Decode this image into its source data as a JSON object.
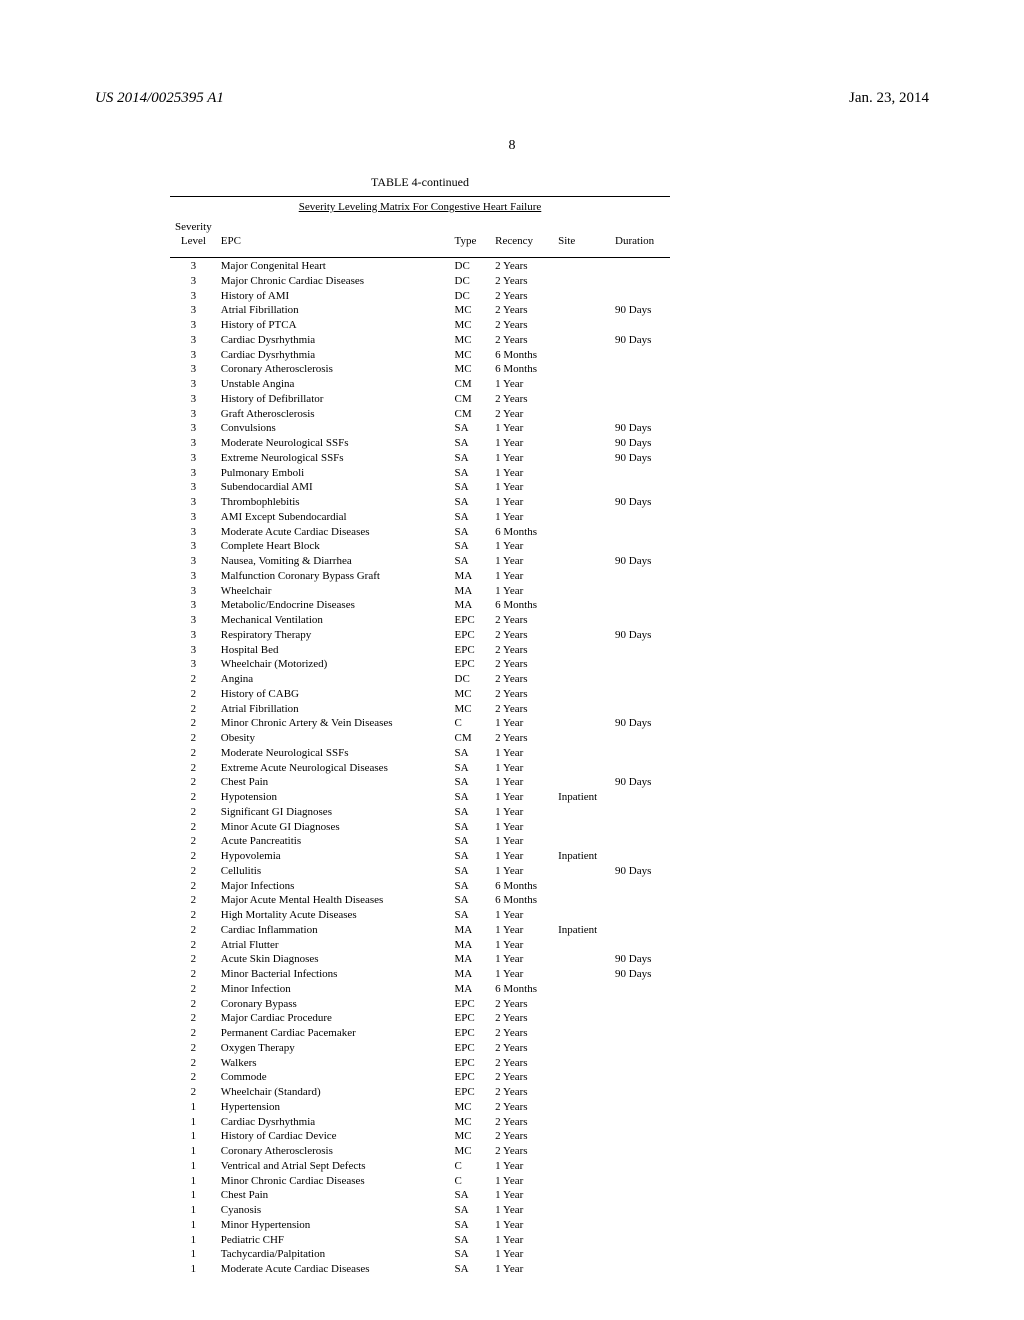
{
  "header": {
    "left": "US 2014/0025395 A1",
    "right": "Jan. 23, 2014",
    "page_number": "8"
  },
  "table": {
    "caption": "TABLE 4-continued",
    "subtitle": "Severity Leveling Matrix For Congestive Heart Failure",
    "columns": {
      "level_top": "Severity",
      "level_bottom": "Level",
      "epc": "EPC",
      "type": "Type",
      "recency": "Recency",
      "site": "Site",
      "duration": "Duration"
    },
    "rows": [
      {
        "level": "3",
        "epc": "Major Congenital Heart",
        "type": "DC",
        "recency": "2 Years",
        "site": "",
        "duration": ""
      },
      {
        "level": "3",
        "epc": "Major Chronic Cardiac Diseases",
        "type": "DC",
        "recency": "2 Years",
        "site": "",
        "duration": ""
      },
      {
        "level": "3",
        "epc": "History of AMI",
        "type": "DC",
        "recency": "2 Years",
        "site": "",
        "duration": ""
      },
      {
        "level": "3",
        "epc": "Atrial Fibrillation",
        "type": "MC",
        "recency": "2 Years",
        "site": "",
        "duration": "90 Days"
      },
      {
        "level": "3",
        "epc": "History of PTCA",
        "type": "MC",
        "recency": "2 Years",
        "site": "",
        "duration": ""
      },
      {
        "level": "3",
        "epc": "Cardiac Dysrhythmia",
        "type": "MC",
        "recency": "2 Years",
        "site": "",
        "duration": "90 Days"
      },
      {
        "level": "3",
        "epc": "Cardiac Dysrhythmia",
        "type": "MC",
        "recency": "6 Months",
        "site": "",
        "duration": ""
      },
      {
        "level": "3",
        "epc": "Coronary Atherosclerosis",
        "type": "MC",
        "recency": "6 Months",
        "site": "",
        "duration": ""
      },
      {
        "level": "3",
        "epc": "Unstable Angina",
        "type": "CM",
        "recency": "1 Year",
        "site": "",
        "duration": ""
      },
      {
        "level": "3",
        "epc": "History of Defibrillator",
        "type": "CM",
        "recency": "2 Years",
        "site": "",
        "duration": ""
      },
      {
        "level": "3",
        "epc": "Graft Atherosclerosis",
        "type": "CM",
        "recency": "2 Year",
        "site": "",
        "duration": ""
      },
      {
        "level": "3",
        "epc": "Convulsions",
        "type": "SA",
        "recency": "1 Year",
        "site": "",
        "duration": "90 Days"
      },
      {
        "level": "3",
        "epc": "Moderate Neurological SSFs",
        "type": "SA",
        "recency": "1 Year",
        "site": "",
        "duration": "90 Days"
      },
      {
        "level": "3",
        "epc": "Extreme Neurological SSFs",
        "type": "SA",
        "recency": "1 Year",
        "site": "",
        "duration": "90 Days"
      },
      {
        "level": "3",
        "epc": "Pulmonary Emboli",
        "type": "SA",
        "recency": "1 Year",
        "site": "",
        "duration": ""
      },
      {
        "level": "3",
        "epc": "Subendocardial AMI",
        "type": "SA",
        "recency": "1 Year",
        "site": "",
        "duration": ""
      },
      {
        "level": "3",
        "epc": "Thrombophlebitis",
        "type": "SA",
        "recency": "1 Year",
        "site": "",
        "duration": "90 Days"
      },
      {
        "level": "3",
        "epc": "AMI Except Subendocardial",
        "type": "SA",
        "recency": "1 Year",
        "site": "",
        "duration": ""
      },
      {
        "level": "3",
        "epc": "Moderate Acute Cardiac Diseases",
        "type": "SA",
        "recency": "6 Months",
        "site": "",
        "duration": ""
      },
      {
        "level": "3",
        "epc": "Complete Heart Block",
        "type": "SA",
        "recency": "1 Year",
        "site": "",
        "duration": ""
      },
      {
        "level": "3",
        "epc": "Nausea, Vomiting & Diarrhea",
        "type": "SA",
        "recency": "1 Year",
        "site": "",
        "duration": "90 Days"
      },
      {
        "level": "3",
        "epc": "Malfunction Coronary Bypass Graft",
        "type": "MA",
        "recency": "1 Year",
        "site": "",
        "duration": ""
      },
      {
        "level": "3",
        "epc": "Wheelchair",
        "type": "MA",
        "recency": "1 Year",
        "site": "",
        "duration": ""
      },
      {
        "level": "3",
        "epc": "Metabolic/Endocrine Diseases",
        "type": "MA",
        "recency": "6 Months",
        "site": "",
        "duration": ""
      },
      {
        "level": "3",
        "epc": "Mechanical Ventilation",
        "type": "EPC",
        "recency": "2 Years",
        "site": "",
        "duration": ""
      },
      {
        "level": "3",
        "epc": "Respiratory Therapy",
        "type": "EPC",
        "recency": "2 Years",
        "site": "",
        "duration": "90 Days"
      },
      {
        "level": "3",
        "epc": "Hospital Bed",
        "type": "EPC",
        "recency": "2 Years",
        "site": "",
        "duration": ""
      },
      {
        "level": "3",
        "epc": "Wheelchair (Motorized)",
        "type": "EPC",
        "recency": "2 Years",
        "site": "",
        "duration": ""
      },
      {
        "level": "2",
        "epc": "Angina",
        "type": "DC",
        "recency": "2 Years",
        "site": "",
        "duration": ""
      },
      {
        "level": "2",
        "epc": "History of CABG",
        "type": "MC",
        "recency": "2 Years",
        "site": "",
        "duration": ""
      },
      {
        "level": "2",
        "epc": "Atrial Fibrillation",
        "type": "MC",
        "recency": "2 Years",
        "site": "",
        "duration": ""
      },
      {
        "level": "2",
        "epc": "Minor Chronic Artery & Vein Diseases",
        "type": "C",
        "recency": "1 Year",
        "site": "",
        "duration": "90 Days"
      },
      {
        "level": "2",
        "epc": "Obesity",
        "type": "CM",
        "recency": "2 Years",
        "site": "",
        "duration": ""
      },
      {
        "level": "2",
        "epc": "Moderate Neurological SSFs",
        "type": "SA",
        "recency": "1 Year",
        "site": "",
        "duration": ""
      },
      {
        "level": "2",
        "epc": "Extreme Acute Neurological Diseases",
        "type": "SA",
        "recency": "1 Year",
        "site": "",
        "duration": ""
      },
      {
        "level": "2",
        "epc": "Chest Pain",
        "type": "SA",
        "recency": "1 Year",
        "site": "",
        "duration": "90 Days"
      },
      {
        "level": "2",
        "epc": "Hypotension",
        "type": "SA",
        "recency": "1 Year",
        "site": "Inpatient",
        "duration": ""
      },
      {
        "level": "2",
        "epc": "Significant GI Diagnoses",
        "type": "SA",
        "recency": "1 Year",
        "site": "",
        "duration": ""
      },
      {
        "level": "2",
        "epc": "Minor Acute GI Diagnoses",
        "type": "SA",
        "recency": "1 Year",
        "site": "",
        "duration": ""
      },
      {
        "level": "2",
        "epc": "Acute Pancreatitis",
        "type": "SA",
        "recency": "1 Year",
        "site": "",
        "duration": ""
      },
      {
        "level": "2",
        "epc": "Hypovolemia",
        "type": "SA",
        "recency": "1 Year",
        "site": "Inpatient",
        "duration": ""
      },
      {
        "level": "2",
        "epc": "Cellulitis",
        "type": "SA",
        "recency": "1 Year",
        "site": "",
        "duration": "90 Days"
      },
      {
        "level": "2",
        "epc": "Major Infections",
        "type": "SA",
        "recency": "6 Months",
        "site": "",
        "duration": ""
      },
      {
        "level": "2",
        "epc": "Major Acute Mental Health Diseases",
        "type": "SA",
        "recency": "6 Months",
        "site": "",
        "duration": ""
      },
      {
        "level": "2",
        "epc": "High Mortality Acute Diseases",
        "type": "SA",
        "recency": "1 Year",
        "site": "",
        "duration": ""
      },
      {
        "level": "2",
        "epc": "Cardiac Inflammation",
        "type": "MA",
        "recency": "1 Year",
        "site": "Inpatient",
        "duration": ""
      },
      {
        "level": "2",
        "epc": "Atrial Flutter",
        "type": "MA",
        "recency": "1 Year",
        "site": "",
        "duration": ""
      },
      {
        "level": "2",
        "epc": "Acute Skin Diagnoses",
        "type": "MA",
        "recency": "1 Year",
        "site": "",
        "duration": "90 Days"
      },
      {
        "level": "2",
        "epc": "Minor Bacterial Infections",
        "type": "MA",
        "recency": "1 Year",
        "site": "",
        "duration": "90 Days"
      },
      {
        "level": "2",
        "epc": "Minor Infection",
        "type": "MA",
        "recency": "6 Months",
        "site": "",
        "duration": ""
      },
      {
        "level": "2",
        "epc": "Coronary Bypass",
        "type": "EPC",
        "recency": "2 Years",
        "site": "",
        "duration": ""
      },
      {
        "level": "2",
        "epc": "Major Cardiac Procedure",
        "type": "EPC",
        "recency": "2 Years",
        "site": "",
        "duration": ""
      },
      {
        "level": "2",
        "epc": "Permanent Cardiac Pacemaker",
        "type": "EPC",
        "recency": "2 Years",
        "site": "",
        "duration": ""
      },
      {
        "level": "2",
        "epc": "Oxygen Therapy",
        "type": "EPC",
        "recency": "2 Years",
        "site": "",
        "duration": ""
      },
      {
        "level": "2",
        "epc": "Walkers",
        "type": "EPC",
        "recency": "2 Years",
        "site": "",
        "duration": ""
      },
      {
        "level": "2",
        "epc": "Commode",
        "type": "EPC",
        "recency": "2 Years",
        "site": "",
        "duration": ""
      },
      {
        "level": "2",
        "epc": "Wheelchair (Standard)",
        "type": "EPC",
        "recency": "2 Years",
        "site": "",
        "duration": ""
      },
      {
        "level": "1",
        "epc": "Hypertension",
        "type": "MC",
        "recency": "2 Years",
        "site": "",
        "duration": ""
      },
      {
        "level": "1",
        "epc": "Cardiac Dysrhythmia",
        "type": "MC",
        "recency": "2 Years",
        "site": "",
        "duration": ""
      },
      {
        "level": "1",
        "epc": "History of Cardiac Device",
        "type": "MC",
        "recency": "2 Years",
        "site": "",
        "duration": ""
      },
      {
        "level": "1",
        "epc": "Coronary Atherosclerosis",
        "type": "MC",
        "recency": "2 Years",
        "site": "",
        "duration": ""
      },
      {
        "level": "1",
        "epc": "Ventrical and Atrial Sept Defects",
        "type": "C",
        "recency": "1 Year",
        "site": "",
        "duration": ""
      },
      {
        "level": "1",
        "epc": "Minor Chronic Cardiac Diseases",
        "type": "C",
        "recency": "1 Year",
        "site": "",
        "duration": ""
      },
      {
        "level": "1",
        "epc": "Chest Pain",
        "type": "SA",
        "recency": "1 Year",
        "site": "",
        "duration": ""
      },
      {
        "level": "1",
        "epc": "Cyanosis",
        "type": "SA",
        "recency": "1 Year",
        "site": "",
        "duration": ""
      },
      {
        "level": "1",
        "epc": "Minor Hypertension",
        "type": "SA",
        "recency": "1 Year",
        "site": "",
        "duration": ""
      },
      {
        "level": "1",
        "epc": "Pediatric CHF",
        "type": "SA",
        "recency": "1 Year",
        "site": "",
        "duration": ""
      },
      {
        "level": "1",
        "epc": "Tachycardia/Palpitation",
        "type": "SA",
        "recency": "1 Year",
        "site": "",
        "duration": ""
      },
      {
        "level": "1",
        "epc": "Moderate Acute Cardiac Diseases",
        "type": "SA",
        "recency": "1 Year",
        "site": "",
        "duration": ""
      }
    ]
  }
}
